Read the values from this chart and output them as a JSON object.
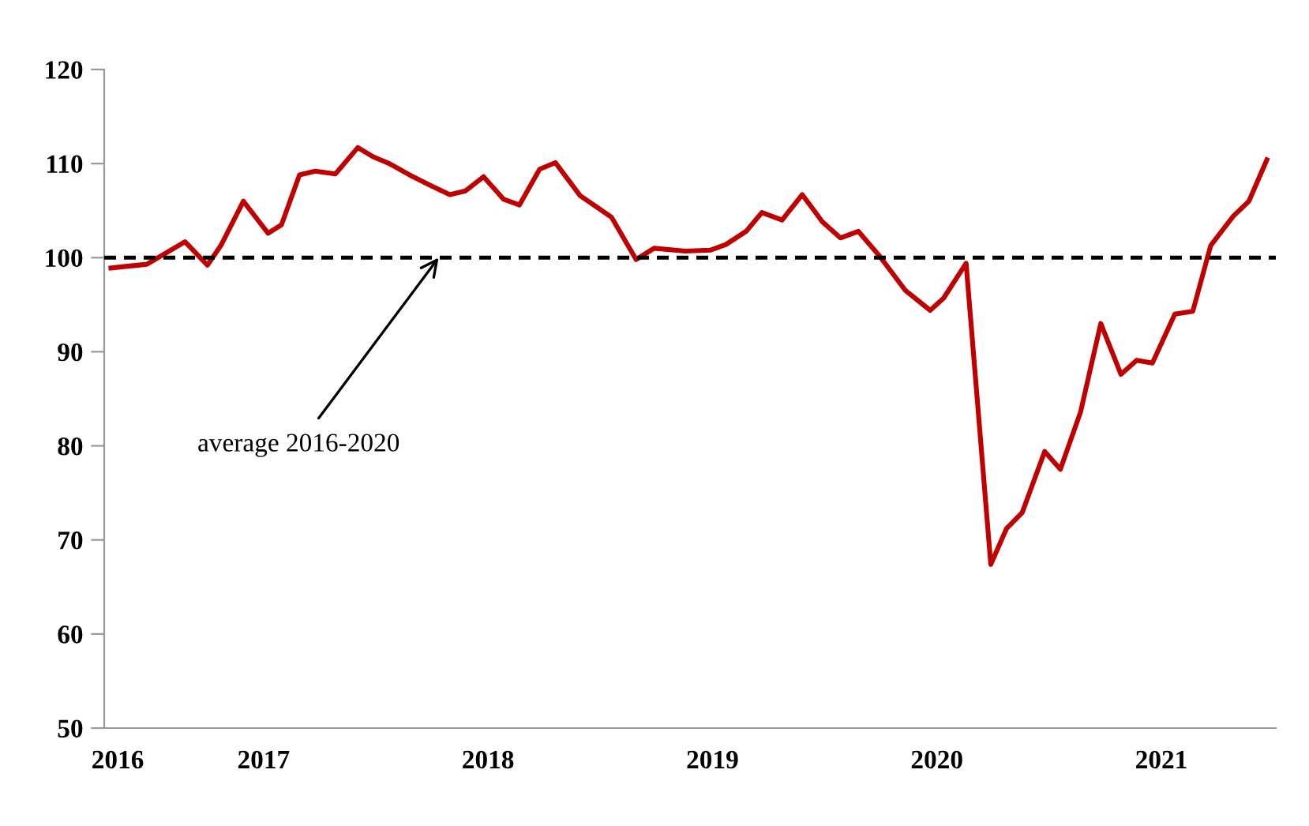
{
  "chart_data": {
    "type": "line",
    "x": [
      2016.32,
      2016.48,
      2016.65,
      2016.75,
      2016.81,
      2016.91,
      2017.02,
      2017.08,
      2017.16,
      2017.23,
      2017.32,
      2017.42,
      2017.49,
      2017.56,
      2017.65,
      2017.75,
      2017.83,
      2017.9,
      2017.98,
      2018.07,
      2018.14,
      2018.23,
      2018.3,
      2018.41,
      2018.55,
      2018.66,
      2018.74,
      2018.88,
      2018.99,
      2019.06,
      2019.15,
      2019.22,
      2019.31,
      2019.4,
      2019.49,
      2019.57,
      2019.65,
      2019.74,
      2019.86,
      2019.97,
      2020.03,
      2020.13,
      2020.24,
      2020.31,
      2020.38,
      2020.48,
      2020.55,
      2020.64,
      2020.73,
      2020.82,
      2020.89,
      2020.96,
      2021.06,
      2021.14,
      2021.22,
      2021.32,
      2021.39,
      2021.47
    ],
    "series": [
      {
        "color": "#c00000",
        "values": [
          98.9,
          99.3,
          101.7,
          99.2,
          101.3,
          106,
          102.6,
          103.5,
          108.8,
          109.2,
          108.9,
          111.7,
          110.7,
          110,
          108.8,
          107.6,
          106.7,
          107.1,
          108.6,
          106.2,
          105.6,
          109.4,
          110.1,
          106.6,
          104.3,
          99.8,
          101,
          100.7,
          100.8,
          101.4,
          102.8,
          104.8,
          104,
          106.7,
          103.8,
          102.1,
          102.8,
          100.3,
          96.5,
          94.4,
          95.7,
          99.4,
          67.4,
          71.2,
          72.9,
          79.4,
          77.5,
          83.6,
          93,
          87.6,
          89.1,
          88.8,
          94,
          94.3,
          101.3,
          104.4,
          106,
          110.4
        ]
      }
    ],
    "xlim": [
      2016.29,
      2021.51
    ],
    "xticks": [
      {
        "value": 2016.35,
        "label": "2016"
      },
      2017,
      2018,
      2019,
      2020,
      2021
    ],
    "ylim": [
      50,
      120
    ],
    "yticks": [
      50,
      60,
      70,
      80,
      90,
      100,
      110,
      120
    ],
    "ref_lines": [
      {
        "axis": "y",
        "value": 100,
        "color": "#000000",
        "line_style": "dashed"
      }
    ],
    "annotations": [
      {
        "text": "average 2016-2020",
        "x": 2017.78,
        "y": 100
      }
    ],
    "grid": false,
    "legend": false,
    "marker": "none",
    "line_style": "solid"
  }
}
